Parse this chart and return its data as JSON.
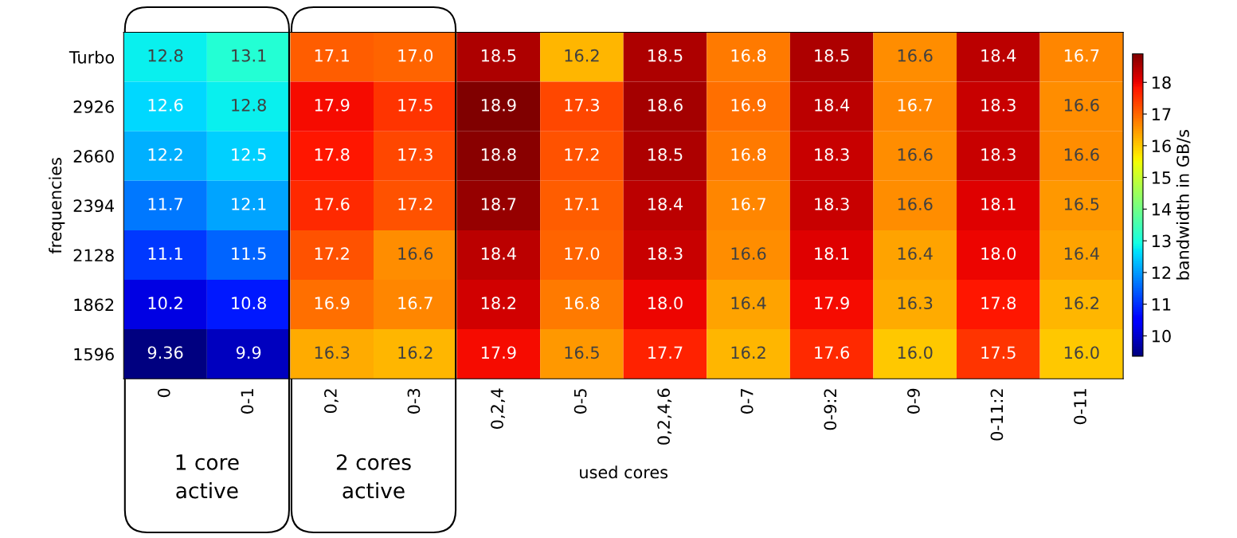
{
  "chart_data": {
    "type": "heatmap",
    "xlabel": "used cores",
    "ylabel": "frequencies",
    "clabel": "bandwidth in GB/s",
    "categories": [
      "0",
      "0-1",
      "0,2",
      "0-3",
      "0,2,4",
      "0-5",
      "0,2,4,6",
      "0-7",
      "0-9:2",
      "0-9",
      "0-11:2",
      "0-11"
    ],
    "y_categories": [
      "Turbo",
      "2926",
      "2660",
      "2394",
      "2128",
      "1862",
      "1596"
    ],
    "cells": [
      [
        12.8,
        13.1,
        17.1,
        17.0,
        18.5,
        16.2,
        18.5,
        16.8,
        18.5,
        16.6,
        18.4,
        16.7
      ],
      [
        12.6,
        12.8,
        17.9,
        17.5,
        18.9,
        17.3,
        18.6,
        16.9,
        18.4,
        16.7,
        18.3,
        16.6
      ],
      [
        12.2,
        12.5,
        17.8,
        17.3,
        18.8,
        17.2,
        18.5,
        16.8,
        18.3,
        16.6,
        18.3,
        16.6
      ],
      [
        11.7,
        12.1,
        17.6,
        17.2,
        18.7,
        17.1,
        18.4,
        16.7,
        18.3,
        16.6,
        18.1,
        16.5
      ],
      [
        11.1,
        11.5,
        17.2,
        16.6,
        18.4,
        17.0,
        18.3,
        16.6,
        18.1,
        16.4,
        18.0,
        16.4
      ],
      [
        10.2,
        10.8,
        16.9,
        16.7,
        18.2,
        16.8,
        18.0,
        16.4,
        17.9,
        16.3,
        17.8,
        16.2
      ],
      [
        9.36,
        9.9,
        16.3,
        16.2,
        17.9,
        16.5,
        17.7,
        16.2,
        17.6,
        16.0,
        17.5,
        16.0
      ]
    ],
    "cell_labels": [
      [
        "12.8",
        "13.1",
        "17.1",
        "17.0",
        "18.5",
        "16.2",
        "18.5",
        "16.8",
        "18.5",
        "16.6",
        "18.4",
        "16.7"
      ],
      [
        "12.6",
        "12.8",
        "17.9",
        "17.5",
        "18.9",
        "17.3",
        "18.6",
        "16.9",
        "18.4",
        "16.7",
        "18.3",
        "16.6"
      ],
      [
        "12.2",
        "12.5",
        "17.8",
        "17.3",
        "18.8",
        "17.2",
        "18.5",
        "16.8",
        "18.3",
        "16.6",
        "18.3",
        "16.6"
      ],
      [
        "11.7",
        "12.1",
        "17.6",
        "17.2",
        "18.7",
        "17.1",
        "18.4",
        "16.7",
        "18.3",
        "16.6",
        "18.1",
        "16.5"
      ],
      [
        "11.1",
        "11.5",
        "17.2",
        "16.6",
        "18.4",
        "17.0",
        "18.3",
        "16.6",
        "18.1",
        "16.4",
        "18.0",
        "16.4"
      ],
      [
        "10.2",
        "10.8",
        "16.9",
        "16.7",
        "18.2",
        "16.8",
        "18.0",
        "16.4",
        "17.9",
        "16.3",
        "17.8",
        "16.2"
      ],
      [
        "9.36",
        "9.9",
        "16.3",
        "16.2",
        "17.9",
        "16.5",
        "17.7",
        "16.2",
        "17.6",
        "16.0",
        "17.5",
        "16.0"
      ]
    ],
    "data_labels": true,
    "clim": [
      9.36,
      18.9
    ],
    "cticks": [
      10,
      11,
      12,
      13,
      14,
      15,
      16,
      17,
      18
    ],
    "annotations": [
      "1 core\nactive",
      "2 cores\nactive"
    ]
  }
}
